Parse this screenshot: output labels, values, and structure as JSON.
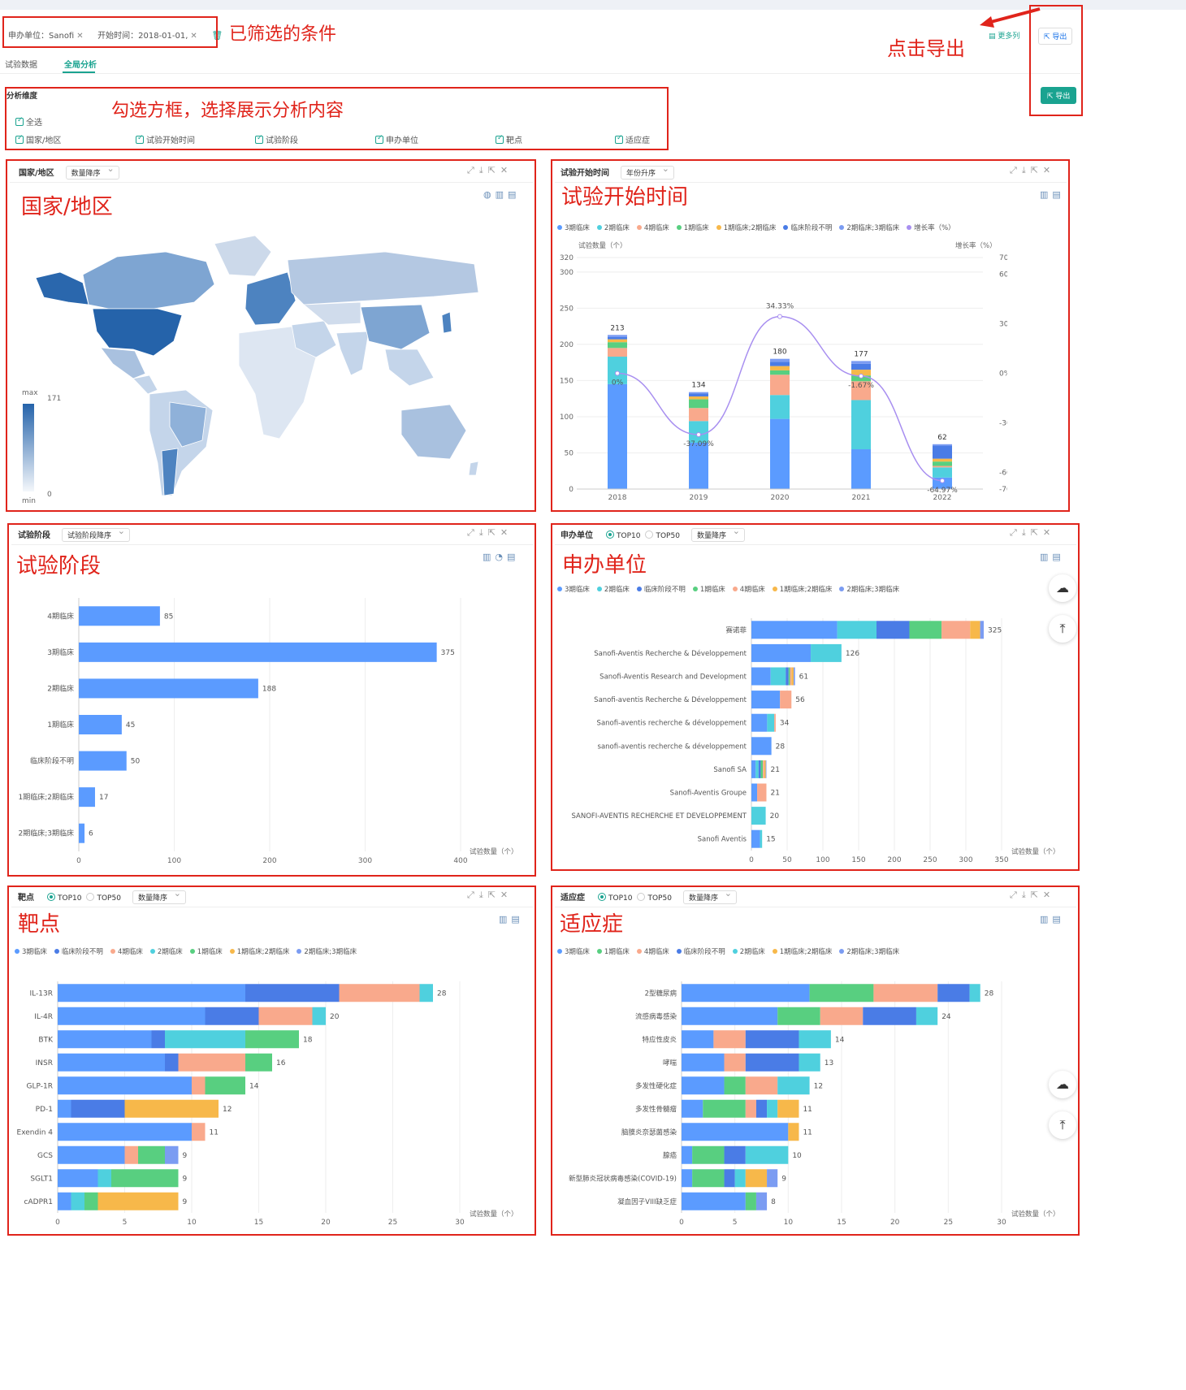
{
  "filters": {
    "sponsor": "申办单位：Sanofi",
    "start": "开始时间：2018-01-01,",
    "annotation": "已筛选的条件"
  },
  "tabs": [
    "试验数据",
    "全局分析"
  ],
  "top_buttons": {
    "more_cols": "更多列",
    "export": "导出",
    "export2": "导出",
    "annotation": "点击导出"
  },
  "dimensions": {
    "title": "分析维度",
    "annotation": "勾选方框，选择展示分析内容",
    "all": "全选",
    "items": [
      "国家/地区",
      "试验开始时间",
      "试验阶段",
      "申办单位",
      "靶点",
      "适应症"
    ]
  },
  "colors": {
    "p3": "#5b9bff",
    "p2": "#4fd0de",
    "p4": "#f9a98c",
    "p1": "#58cf80",
    "p12": "#f7b84a",
    "pu": "#4a7ce6",
    "p23": "#7b9cf2",
    "growth": "#a88ff0",
    "accent": "#1aa390",
    "red": "#e0241b"
  },
  "map": {
    "head": "国家/地区",
    "sort": "数量降序",
    "annotation": "国家/地区",
    "legend_max_label": "max",
    "legend_max": "171",
    "legend_min_label": "min",
    "legend_min": "0"
  },
  "time": {
    "head": "试验开始时间",
    "sort": "年份升序",
    "annotation": "试验开始时间",
    "ylabel": "试验数量（个）",
    "y2label": "增长率（%）",
    "legend": [
      "3期临床",
      "2期临床",
      "4期临床",
      "1期临床",
      "1期临床;2期临床",
      "临床阶段不明",
      "2期临床;3期临床",
      "增长率（%）"
    ]
  },
  "phase": {
    "head": "试验阶段",
    "sort": "试验阶段降序",
    "annotation": "试验阶段",
    "xlabel": "试验数量（个）"
  },
  "sponsor": {
    "head": "申办单位",
    "top10": "TOP10",
    "top50": "TOP50",
    "sort": "数量降序",
    "annotation": "申办单位",
    "xlabel": "试验数量（个）",
    "legend": [
      "3期临床",
      "2期临床",
      "临床阶段不明",
      "1期临床",
      "4期临床",
      "1期临床;2期临床",
      "2期临床;3期临床"
    ]
  },
  "target": {
    "head": "靶点",
    "top10": "TOP10",
    "top50": "TOP50",
    "sort": "数量降序",
    "annotation": "靶点",
    "xlabel": "试验数量（个）",
    "legend": [
      "3期临床",
      "临床阶段不明",
      "4期临床",
      "2期临床",
      "1期临床",
      "1期临床;2期临床",
      "2期临床;3期临床"
    ]
  },
  "indication": {
    "head": "适应症",
    "top10": "TOP10",
    "top50": "TOP50",
    "sort": "数量降序",
    "annotation": "适应症",
    "xlabel": "试验数量（个）",
    "legend": [
      "3期临床",
      "1期临床",
      "4期临床",
      "临床阶段不明",
      "2期临床",
      "1期临床;2期临床",
      "2期临床;3期临床"
    ]
  },
  "chart_data": [
    {
      "type": "bar",
      "title": "试验开始时间",
      "categories": [
        "2018",
        "2019",
        "2020",
        "2021",
        "2022"
      ],
      "totals": [
        213,
        134,
        180,
        177,
        62
      ],
      "ylim": [
        0,
        320
      ],
      "yticks": [
        0,
        50,
        100,
        150,
        200,
        250,
        300,
        320
      ],
      "series": [
        {
          "name": "3期临床",
          "values": [
            145,
            64,
            97,
            55,
            16
          ]
        },
        {
          "name": "2期临床",
          "values": [
            38,
            30,
            33,
            68,
            14
          ]
        },
        {
          "name": "4期临床",
          "values": [
            12,
            18,
            28,
            26,
            2
          ]
        },
        {
          "name": "1期临床",
          "values": [
            8,
            12,
            6,
            8,
            6
          ]
        },
        {
          "name": "1期临床;2期临床",
          "values": [
            4,
            4,
            6,
            8,
            4
          ]
        },
        {
          "name": "临床阶段不明",
          "values": [
            3,
            4,
            6,
            8,
            18
          ]
        },
        {
          "name": "2期临床;3期临床",
          "values": [
            3,
            2,
            4,
            4,
            2
          ]
        }
      ],
      "growth": {
        "name": "增长率（%）",
        "values": [
          0,
          -37.09,
          34.33,
          -1.67,
          -64.97
        ],
        "labels": [
          "0%",
          "-37.09%",
          "34.33%",
          "-1.67%",
          "-64.97%"
        ],
        "y2ticks": [
          "70%",
          "60%",
          "30%",
          "0%",
          "-30%",
          "-60%",
          "-70%"
        ],
        "y2lim": [
          -70,
          70
        ]
      }
    },
    {
      "type": "bar",
      "title": "试验阶段",
      "categories": [
        "4期临床",
        "3期临床",
        "2期临床",
        "1期临床",
        "临床阶段不明",
        "1期临床;2期临床",
        "2期临床;3期临床"
      ],
      "values": [
        85,
        375,
        188,
        45,
        50,
        17,
        6
      ],
      "xlim": [
        0,
        400
      ],
      "xticks": [
        0,
        100,
        200,
        300,
        400
      ]
    },
    {
      "type": "bar",
      "title": "申办单位",
      "categories": [
        "赛诺菲",
        "Sanofi-Aventis Recherche & Développement",
        "Sanofi-Aventis Research and Development",
        "Sanofi-aventis Recherche & Développement",
        "Sanofi-aventis recherche & développement",
        "sanofi-aventis recherche & développement",
        "Sanofi SA",
        "Sanofi-Aventis Groupe",
        "SANOFI-AVENTIS RECHERCHE ET DEVELOPPEMENT",
        "Sanofi Aventis"
      ],
      "totals": [
        325,
        126,
        61,
        56,
        34,
        28,
        21,
        21,
        20,
        15
      ],
      "xlim": [
        0,
        350
      ],
      "xticks": [
        0,
        50,
        100,
        150,
        200,
        250,
        300,
        350
      ],
      "series": [
        {
          "name": "3期临床",
          "values": [
            120,
            83,
            27,
            40,
            22,
            28,
            6,
            8,
            0,
            12
          ]
        },
        {
          "name": "2期临床",
          "values": [
            55,
            43,
            21,
            0,
            10,
            0,
            4,
            0,
            20,
            3
          ]
        },
        {
          "name": "临床阶段不明",
          "values": [
            46,
            0,
            4,
            0,
            0,
            0,
            3,
            0,
            0,
            0
          ]
        },
        {
          "name": "1期临床",
          "values": [
            45,
            0,
            2,
            0,
            0,
            0,
            3,
            0,
            0,
            0
          ]
        },
        {
          "name": "4期临床",
          "values": [
            40,
            0,
            2,
            16,
            2,
            0,
            2,
            13,
            0,
            0
          ]
        },
        {
          "name": "1期临床;2期临床",
          "values": [
            14,
            0,
            3,
            0,
            0,
            0,
            2,
            0,
            0,
            0
          ]
        },
        {
          "name": "2期临床;3期临床",
          "values": [
            5,
            0,
            2,
            0,
            0,
            0,
            1,
            0,
            0,
            0
          ]
        }
      ]
    },
    {
      "type": "bar",
      "title": "靶点",
      "categories": [
        "IL-13R",
        "IL-4R",
        "BTK",
        "INSR",
        "GLP-1R",
        "PD-1",
        "Exendin 4",
        "GCS",
        "SGLT1",
        "cADPR1"
      ],
      "totals": [
        28,
        20,
        18,
        16,
        14,
        12,
        11,
        9,
        9,
        9
      ],
      "xlim": [
        0,
        30
      ],
      "xticks": [
        0,
        5,
        10,
        15,
        20,
        25,
        30
      ],
      "series": [
        {
          "name": "3期临床",
          "values": [
            14,
            11,
            7,
            8,
            10,
            1,
            10,
            5,
            3,
            1
          ]
        },
        {
          "name": "临床阶段不明",
          "values": [
            7,
            4,
            1,
            1,
            0,
            4,
            0,
            0,
            0,
            0
          ]
        },
        {
          "name": "4期临床",
          "values": [
            6,
            4,
            0,
            5,
            1,
            0,
            1,
            1,
            0,
            0
          ]
        },
        {
          "name": "2期临床",
          "values": [
            1,
            1,
            6,
            0,
            0,
            0,
            0,
            0,
            1,
            1
          ]
        },
        {
          "name": "1期临床",
          "values": [
            0,
            0,
            4,
            2,
            3,
            0,
            0,
            2,
            5,
            1
          ]
        },
        {
          "name": "1期临床;2期临床",
          "values": [
            0,
            0,
            0,
            0,
            0,
            7,
            0,
            0,
            0,
            6
          ]
        },
        {
          "name": "2期临床;3期临床",
          "values": [
            0,
            0,
            0,
            0,
            0,
            0,
            0,
            1,
            0,
            0
          ]
        }
      ]
    },
    {
      "type": "bar",
      "title": "适应症",
      "categories": [
        "2型糖尿病",
        "流感病毒感染",
        "特应性皮炎",
        "哮喘",
        "多发性硬化症",
        "多发性骨髓瘤",
        "脑膜炎奈瑟菌感染",
        "腺癌",
        "新型肺炎冠状病毒感染(COVID-19)",
        "凝血因子VIII缺乏症"
      ],
      "totals": [
        28,
        24,
        14,
        13,
        12,
        11,
        11,
        10,
        9,
        8
      ],
      "xlim": [
        0,
        30
      ],
      "xticks": [
        0,
        5,
        10,
        15,
        20,
        25,
        30
      ],
      "series": [
        {
          "name": "3期临床",
          "values": [
            12,
            9,
            3,
            4,
            4,
            2,
            10,
            1,
            1,
            6
          ]
        },
        {
          "name": "1期临床",
          "values": [
            6,
            4,
            0,
            0,
            2,
            4,
            0,
            3,
            3,
            1
          ]
        },
        {
          "name": "4期临床",
          "values": [
            6,
            4,
            3,
            2,
            3,
            1,
            0,
            0,
            0,
            0
          ]
        },
        {
          "name": "临床阶段不明",
          "values": [
            3,
            5,
            5,
            5,
            0,
            1,
            0,
            2,
            1,
            0
          ]
        },
        {
          "name": "2期临床",
          "values": [
            1,
            2,
            3,
            2,
            3,
            1,
            0,
            4,
            1,
            0
          ]
        },
        {
          "name": "1期临床;2期临床",
          "values": [
            0,
            0,
            0,
            0,
            0,
            2,
            1,
            0,
            2,
            0
          ]
        },
        {
          "name": "2期临床;3期临床",
          "values": [
            0,
            0,
            0,
            0,
            0,
            0,
            0,
            0,
            1,
            1
          ]
        }
      ]
    }
  ]
}
